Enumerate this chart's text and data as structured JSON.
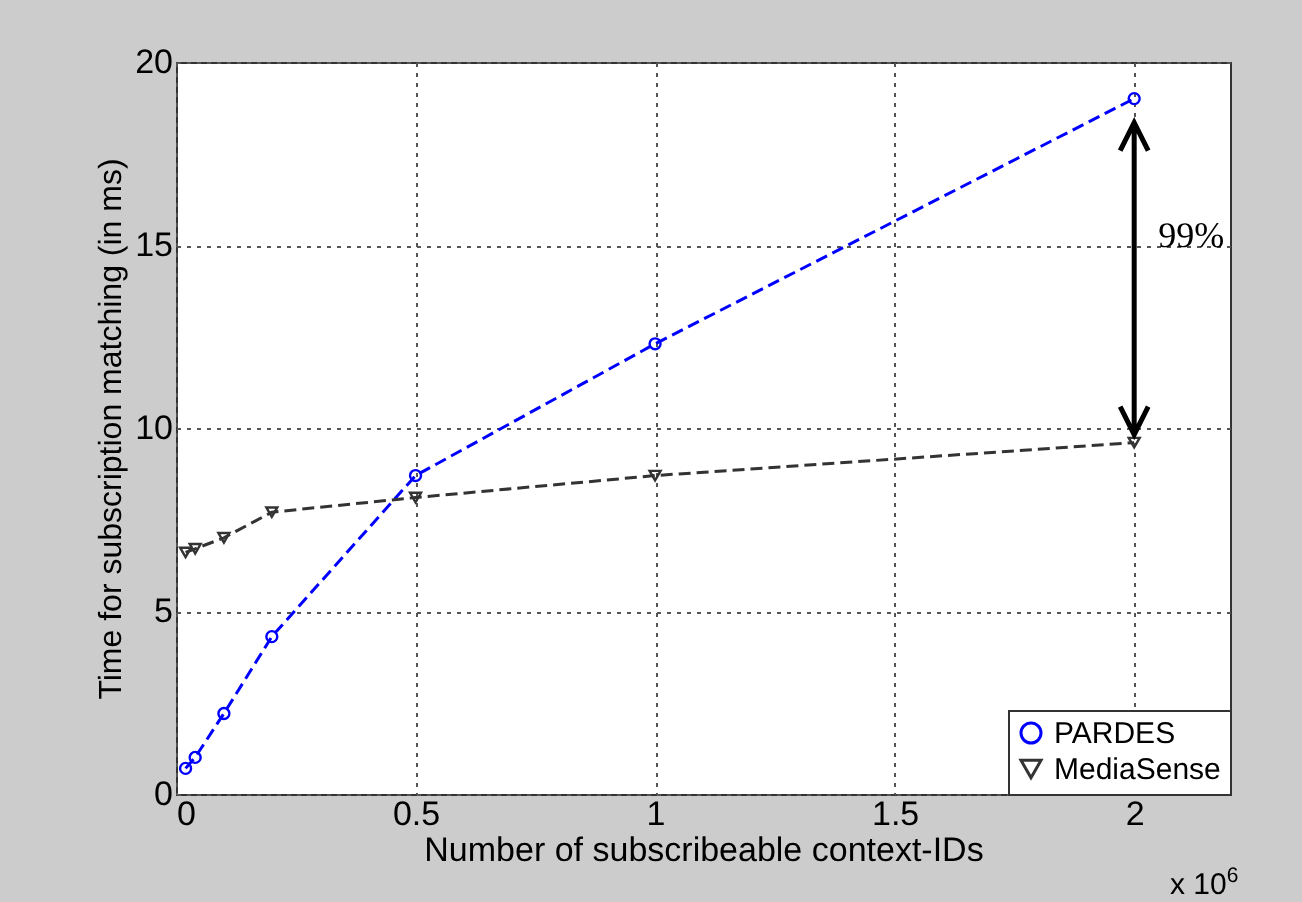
{
  "chart_data": {
    "type": "line",
    "xlabel": "Number of subscribeable context-IDs",
    "ylabel": "Time for subscription matching (in ms)",
    "x": [
      0.02,
      0.04,
      0.1,
      0.2,
      0.5,
      1,
      2
    ],
    "series": [
      {
        "name": "PARDES",
        "color": "#0000ff",
        "marker": "circle",
        "values": [
          0.7,
          1.0,
          2.2,
          4.3,
          8.7,
          12.3,
          19
        ]
      },
      {
        "name": "MediaSense",
        "color": "#333333",
        "marker": "triangle",
        "values": [
          6.6,
          6.7,
          7.0,
          7.7,
          8.1,
          8.7,
          9.6
        ]
      }
    ],
    "xlim": [
      0,
      2.2
    ],
    "xticks": [
      0,
      0.5,
      1,
      1.5,
      2
    ],
    "ylim": [
      0,
      20
    ],
    "yticks": [
      0,
      5,
      10,
      15,
      20
    ],
    "grid": true,
    "legend": "bottom right",
    "line_style": "dashed",
    "annotations": [
      "99%",
      "x 10$^{6}$"
    ]
  }
}
